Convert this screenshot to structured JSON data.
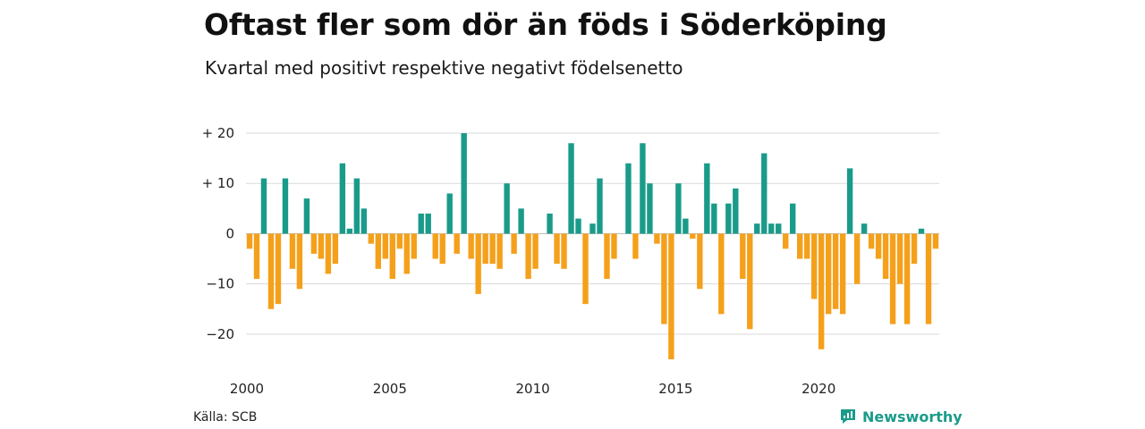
{
  "title": "Oftast fler som dör än föds i Söderköping",
  "subtitle": "Kvartal med positivt respektive negativt födelsenetto",
  "source": "Källa: SCB",
  "brand": "Newsworthy",
  "colors": {
    "positive": "#1a9b8a",
    "negative": "#f5a01a",
    "grid": "#d9d9d9",
    "zero": "#bdbdbd"
  },
  "chart_data": {
    "type": "bar",
    "start_year": 2000,
    "periods_per_year": 4,
    "values": [
      -3,
      -9,
      11,
      -15,
      -14,
      11,
      -7,
      -11,
      7,
      -4,
      -5,
      -8,
      -6,
      14,
      1,
      11,
      5,
      -2,
      -7,
      -5,
      -9,
      -3,
      -8,
      -5,
      4,
      4,
      -5,
      -6,
      8,
      -4,
      20,
      -5,
      -12,
      -6,
      -6,
      -7,
      10,
      -4,
      5,
      -9,
      -7,
      0,
      4,
      -6,
      -7,
      18,
      3,
      -14,
      2,
      11,
      -9,
      -5,
      0,
      14,
      -5,
      18,
      10,
      -2,
      -18,
      -25,
      10,
      3,
      -1,
      -11,
      14,
      6,
      -16,
      6,
      9,
      -9,
      -19,
      2,
      16,
      2,
      2,
      -3,
      6,
      -5,
      -5,
      -13,
      -23,
      -16,
      -15,
      -16,
      13,
      -10,
      2,
      -3,
      -5,
      -9,
      -18,
      -10,
      -18,
      -6,
      1,
      -18,
      -3
    ],
    "ylim": [
      -25,
      20
    ],
    "yticks": [
      {
        "value": 20,
        "label": "+ 20"
      },
      {
        "value": 10,
        "label": "+ 10"
      },
      {
        "value": 0,
        "label": "0"
      },
      {
        "value": -10,
        "label": "−10"
      },
      {
        "value": -20,
        "label": "−20"
      }
    ],
    "xticks": [
      {
        "year": 2000,
        "label": "2000"
      },
      {
        "year": 2005,
        "label": "2005"
      },
      {
        "year": 2010,
        "label": "2010"
      },
      {
        "year": 2015,
        "label": "2015"
      },
      {
        "year": 2020,
        "label": "2020"
      }
    ],
    "grid": true
  }
}
